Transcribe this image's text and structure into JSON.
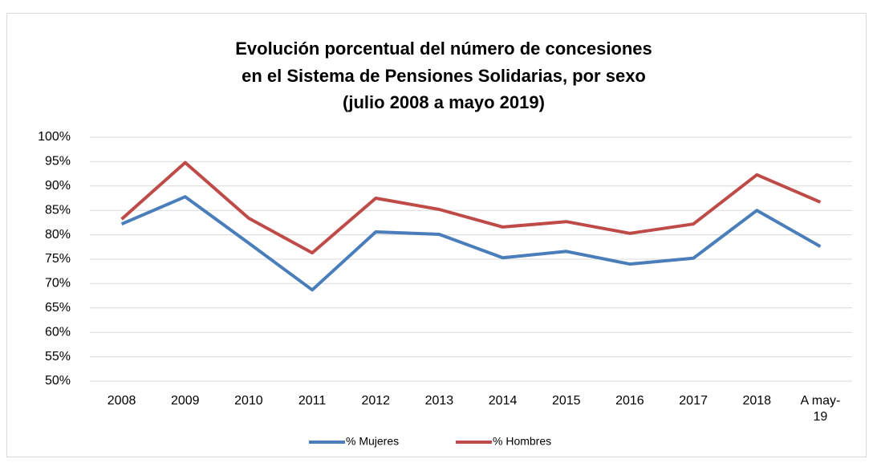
{
  "chart_data": {
    "type": "line",
    "title": [
      "Evolución porcentual del número de concesiones",
      "en el Sistema de Pensiones Solidarias, por sexo",
      "(julio 2008 a mayo 2019)"
    ],
    "categories": [
      "2008",
      "2009",
      "2010",
      "2011",
      "2012",
      "2013",
      "2014",
      "2015",
      "2016",
      "2017",
      "2018",
      "A may-19"
    ],
    "series": [
      {
        "name": "% Mujeres",
        "color": "#4a7ebb",
        "values": [
          82.2,
          87.8,
          78.3,
          68.7,
          80.6,
          80.1,
          75.3,
          76.6,
          74.0,
          75.2,
          85.0,
          77.6
        ]
      },
      {
        "name": "% Hombres",
        "color": "#be4b48",
        "values": [
          83.2,
          94.8,
          83.4,
          76.3,
          87.5,
          85.2,
          81.6,
          82.7,
          80.3,
          82.2,
          92.3,
          86.7
        ]
      }
    ],
    "ylim": [
      50,
      100
    ],
    "yticks": [
      {
        "value": 50,
        "label": "50%"
      },
      {
        "value": 55,
        "label": "55%"
      },
      {
        "value": 60,
        "label": "60%"
      },
      {
        "value": 65,
        "label": "65%"
      },
      {
        "value": 70,
        "label": "70%"
      },
      {
        "value": 75,
        "label": "75%"
      },
      {
        "value": 80,
        "label": "80%"
      },
      {
        "value": 85,
        "label": "85%"
      },
      {
        "value": 90,
        "label": "90%"
      },
      {
        "value": 95,
        "label": "95%"
      },
      {
        "value": 100,
        "label": "100%"
      }
    ],
    "grid": true,
    "legend": "bottom"
  }
}
